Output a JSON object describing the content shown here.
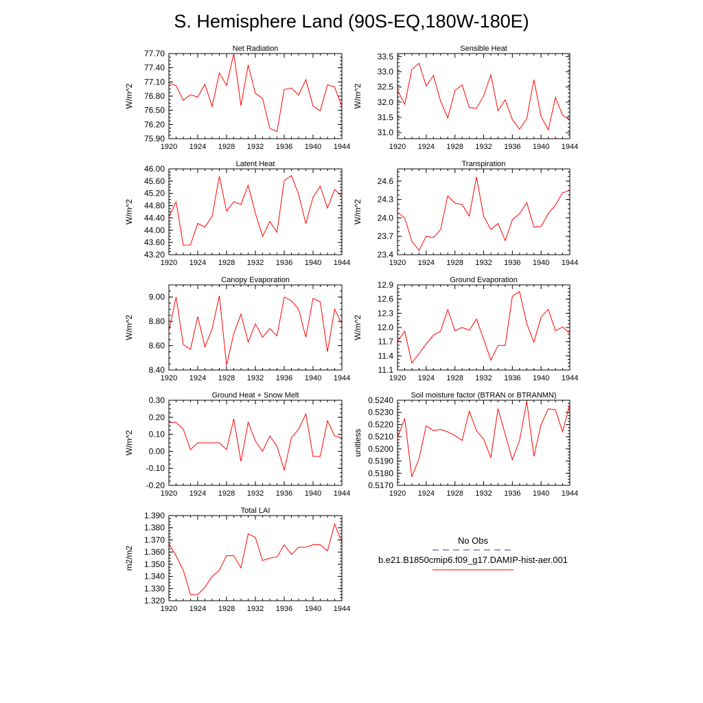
{
  "title": "S. Hemisphere Land (90S-EQ,180W-180E)",
  "legend": {
    "obs_label": "No Obs",
    "model_label": "b.e21.B1850cmip6.f09_g17.DAMIP-hist-aer.001",
    "obs_color": "#3333aa",
    "model_color": "#ff0000"
  },
  "chart_data": [
    {
      "type": "line",
      "title": "Net Radiation",
      "ylabel": "W/m^2",
      "xlim": [
        1920,
        1944
      ],
      "ylim": [
        75.9,
        77.7
      ],
      "xticks": [
        "1920",
        "1924",
        "1928",
        "1932",
        "1936",
        "1940",
        "1944"
      ],
      "yticks": [
        "75.90",
        "76.20",
        "76.50",
        "76.80",
        "77.10",
        "77.40",
        "77.70"
      ],
      "x": [
        1920,
        1921,
        1922,
        1923,
        1924,
        1925,
        1926,
        1927,
        1928,
        1929,
        1930,
        1931,
        1932,
        1933,
        1934,
        1935,
        1936,
        1937,
        1938,
        1939,
        1940,
        1941,
        1942,
        1943,
        1944
      ],
      "series": [
        {
          "color": "#ff0000",
          "values": [
            77.08,
            77.02,
            76.71,
            76.83,
            76.78,
            77.05,
            76.58,
            77.29,
            77.03,
            77.7,
            76.6,
            77.46,
            76.86,
            76.75,
            76.12,
            76.05,
            76.94,
            76.97,
            76.82,
            77.15,
            76.59,
            76.49,
            77.04,
            76.99,
            76.58
          ]
        }
      ]
    },
    {
      "type": "line",
      "title": "Sensible Heat",
      "ylabel": "W/m^2",
      "xlim": [
        1920,
        1944
      ],
      "ylim": [
        30.8,
        33.6
      ],
      "xticks": [
        "1920",
        "1924",
        "1928",
        "1932",
        "1936",
        "1940",
        "1944"
      ],
      "yticks": [
        "31.0",
        "31.5",
        "32.0",
        "32.5",
        "33.0",
        "33.5"
      ],
      "x": [
        1920,
        1921,
        1922,
        1923,
        1924,
        1925,
        1926,
        1927,
        1928,
        1929,
        1930,
        1931,
        1932,
        1933,
        1934,
        1935,
        1936,
        1937,
        1938,
        1939,
        1940,
        1941,
        1942,
        1943,
        1944
      ],
      "series": [
        {
          "color": "#ff0000",
          "values": [
            32.4,
            31.93,
            33.08,
            33.28,
            32.53,
            32.88,
            32.03,
            31.48,
            32.38,
            32.57,
            31.82,
            31.8,
            32.21,
            32.9,
            31.72,
            32.08,
            31.43,
            31.11,
            31.46,
            32.74,
            31.53,
            31.09,
            32.16,
            31.57,
            31.42
          ]
        }
      ]
    },
    {
      "type": "line",
      "title": "Latent Heat",
      "ylabel": "W/m^2",
      "xlim": [
        1920,
        1944
      ],
      "ylim": [
        43.2,
        46.0
      ],
      "xticks": [
        "1920",
        "1924",
        "1928",
        "1932",
        "1936",
        "1940",
        "1944"
      ],
      "yticks": [
        "43.20",
        "43.60",
        "44.00",
        "44.40",
        "44.80",
        "45.20",
        "45.60",
        "46.00"
      ],
      "x": [
        1920,
        1921,
        1922,
        1923,
        1924,
        1925,
        1926,
        1927,
        1928,
        1929,
        1930,
        1931,
        1932,
        1933,
        1934,
        1935,
        1936,
        1937,
        1938,
        1939,
        1940,
        1941,
        1942,
        1943,
        1944
      ],
      "series": [
        {
          "color": "#ff0000",
          "values": [
            44.43,
            44.92,
            43.51,
            43.52,
            44.22,
            44.1,
            44.45,
            45.76,
            44.62,
            44.93,
            44.84,
            45.47,
            44.55,
            43.8,
            44.28,
            43.93,
            45.62,
            45.78,
            45.17,
            44.21,
            45.08,
            45.43,
            44.72,
            45.33,
            45.09
          ]
        }
      ]
    },
    {
      "type": "line",
      "title": "Transpiration",
      "ylabel": "W/m^2",
      "xlim": [
        1920,
        1944
      ],
      "ylim": [
        23.4,
        24.8
      ],
      "xticks": [
        "1920",
        "1924",
        "1928",
        "1932",
        "1936",
        "1940",
        "1944"
      ],
      "yticks": [
        "23.4",
        "23.7",
        "24.0",
        "24.3",
        "24.6"
      ],
      "x": [
        1920,
        1921,
        1922,
        1923,
        1924,
        1925,
        1926,
        1927,
        1928,
        1929,
        1930,
        1931,
        1932,
        1933,
        1934,
        1935,
        1936,
        1937,
        1938,
        1939,
        1940,
        1941,
        1942,
        1943,
        1944
      ],
      "series": [
        {
          "color": "#ff0000",
          "values": [
            24.09,
            24.0,
            23.62,
            23.47,
            23.7,
            23.68,
            23.81,
            24.36,
            24.24,
            24.22,
            24.03,
            24.67,
            24.03,
            23.81,
            23.91,
            23.63,
            23.97,
            24.07,
            24.25,
            23.85,
            23.86,
            24.07,
            24.21,
            24.41,
            24.45
          ]
        }
      ]
    },
    {
      "type": "line",
      "title": "Canopy Evaporation",
      "ylabel": "W/m^2",
      "xlim": [
        1920,
        1944
      ],
      "ylim": [
        8.4,
        9.1
      ],
      "xticks": [
        "1920",
        "1924",
        "1928",
        "1932",
        "1936",
        "1940",
        "1944"
      ],
      "yticks": [
        "8.40",
        "8.60",
        "8.80",
        "9.00"
      ],
      "x": [
        1920,
        1921,
        1922,
        1923,
        1924,
        1925,
        1926,
        1927,
        1928,
        1929,
        1930,
        1931,
        1932,
        1933,
        1934,
        1935,
        1936,
        1937,
        1938,
        1939,
        1940,
        1941,
        1942,
        1943,
        1944
      ],
      "series": [
        {
          "color": "#ff0000",
          "values": [
            8.72,
            9.0,
            8.61,
            8.57,
            8.84,
            8.59,
            8.74,
            9.01,
            8.44,
            8.7,
            8.86,
            8.63,
            8.78,
            8.67,
            8.74,
            8.68,
            9.0,
            8.97,
            8.9,
            8.67,
            8.99,
            8.96,
            8.55,
            8.9,
            8.78
          ]
        }
      ]
    },
    {
      "type": "line",
      "title": "Ground Evaporation",
      "ylabel": "W/m^2",
      "xlim": [
        1920,
        1944
      ],
      "ylim": [
        11.1,
        12.9
      ],
      "xticks": [
        "1920",
        "1924",
        "1928",
        "1932",
        "1936",
        "1940",
        "1944"
      ],
      "yticks": [
        "11.1",
        "11.4",
        "11.7",
        "12.0",
        "12.3",
        "12.6",
        "12.9"
      ],
      "x": [
        1920,
        1921,
        1922,
        1923,
        1924,
        1925,
        1926,
        1927,
        1928,
        1929,
        1930,
        1931,
        1932,
        1933,
        1934,
        1935,
        1936,
        1937,
        1938,
        1939,
        1940,
        1941,
        1942,
        1943,
        1944
      ],
      "series": [
        {
          "color": "#ff0000",
          "values": [
            11.7,
            11.92,
            11.25,
            11.45,
            11.65,
            11.84,
            11.92,
            12.38,
            11.93,
            12.0,
            11.94,
            12.18,
            11.75,
            11.31,
            11.62,
            11.62,
            12.66,
            12.76,
            12.08,
            11.69,
            12.22,
            12.38,
            11.93,
            12.01,
            11.87
          ]
        }
      ]
    },
    {
      "type": "line",
      "title": "Ground Heat + Snow Melt",
      "ylabel": "W/m^2",
      "xlim": [
        1920,
        1944
      ],
      "ylim": [
        -0.2,
        0.3
      ],
      "xticks": [
        "1920",
        "1924",
        "1928",
        "1932",
        "1936",
        "1940",
        "1944"
      ],
      "yticks": [
        "-0.20",
        "-0.10",
        "0.00",
        "0.10",
        "0.20",
        "0.30"
      ],
      "x": [
        1920,
        1921,
        1922,
        1923,
        1924,
        1925,
        1926,
        1927,
        1928,
        1929,
        1930,
        1931,
        1932,
        1933,
        1934,
        1935,
        1936,
        1937,
        1938,
        1939,
        1940,
        1941,
        1942,
        1943,
        1944
      ],
      "series": [
        {
          "color": "#ff0000",
          "values": [
            0.17,
            0.17,
            0.13,
            0.01,
            0.05,
            0.05,
            0.05,
            0.05,
            0.01,
            0.19,
            -0.06,
            0.17,
            0.06,
            0.0,
            0.09,
            0.03,
            -0.11,
            0.08,
            0.13,
            0.22,
            -0.03,
            -0.03,
            0.18,
            0.09,
            0.08
          ]
        }
      ]
    },
    {
      "type": "line",
      "title": "Soil moisture factor (BTRAN or BTRANMN)",
      "ylabel": "unitless",
      "xlim": [
        1920,
        1944
      ],
      "ylim": [
        0.517,
        0.524
      ],
      "xticks": [
        "1920",
        "1924",
        "1928",
        "1932",
        "1936",
        "1940",
        "1944"
      ],
      "yticks": [
        "0.5170",
        "0.5180",
        "0.5190",
        "0.5200",
        "0.5210",
        "0.5220",
        "0.5230",
        "0.5240"
      ],
      "x": [
        1920,
        1921,
        1922,
        1923,
        1924,
        1925,
        1926,
        1927,
        1928,
        1929,
        1930,
        1931,
        1932,
        1933,
        1934,
        1935,
        1936,
        1937,
        1938,
        1939,
        1940,
        1941,
        1942,
        1943,
        1944
      ],
      "series": [
        {
          "color": "#ff0000",
          "values": [
            0.5209,
            0.5225,
            0.5177,
            0.5192,
            0.5219,
            0.5215,
            0.5216,
            0.5214,
            0.5211,
            0.5207,
            0.5231,
            0.5215,
            0.5208,
            0.5193,
            0.5233,
            0.5212,
            0.5191,
            0.5207,
            0.5239,
            0.5194,
            0.522,
            0.5233,
            0.5232,
            0.5214,
            0.5237
          ]
        }
      ]
    },
    {
      "type": "line",
      "title": "Total LAI",
      "ylabel": "m2/m2",
      "xlim": [
        1920,
        1944
      ],
      "ylim": [
        1.32,
        1.39
      ],
      "xticks": [
        "1920",
        "1924",
        "1928",
        "1932",
        "1936",
        "1940",
        "1944"
      ],
      "yticks": [
        "1.320",
        "1.330",
        "1.340",
        "1.350",
        "1.360",
        "1.370",
        "1.380",
        "1.390"
      ],
      "x": [
        1920,
        1921,
        1922,
        1923,
        1924,
        1925,
        1926,
        1927,
        1928,
        1929,
        1930,
        1931,
        1932,
        1933,
        1934,
        1935,
        1936,
        1937,
        1938,
        1939,
        1940,
        1941,
        1942,
        1943,
        1944
      ],
      "series": [
        {
          "color": "#ff0000",
          "values": [
            1.367,
            1.357,
            1.345,
            1.325,
            1.325,
            1.331,
            1.34,
            1.345,
            1.357,
            1.357,
            1.347,
            1.375,
            1.372,
            1.353,
            1.355,
            1.356,
            1.366,
            1.358,
            1.364,
            1.364,
            1.366,
            1.366,
            1.361,
            1.383,
            1.368
          ]
        }
      ]
    }
  ]
}
